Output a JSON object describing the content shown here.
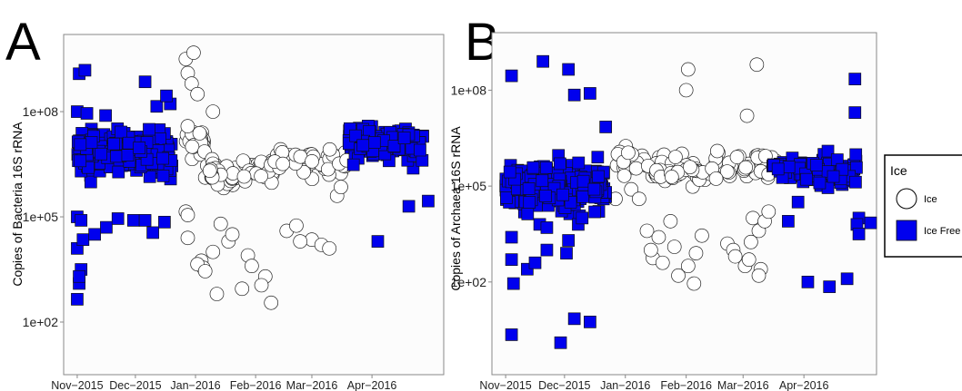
{
  "colors": {
    "ice_fill": "#ffffff",
    "ice_free_fill": "#0000ee",
    "panel_bg": "#fcfcfc",
    "axis": "#888888"
  },
  "legend": {
    "title": "Ice",
    "items": [
      {
        "label": "Ice",
        "shape": "circle",
        "color": "#ffffff"
      },
      {
        "label": "Ice  Free",
        "shape": "square",
        "color": "#0000ee"
      }
    ]
  },
  "chart_data": [
    {
      "type": "scatter",
      "panel_label": "A",
      "ylabel": "Copies of Bacteria 16S rRNA",
      "xlabel": "",
      "yscale": "log10",
      "ylim_log10": [
        0.5,
        10.2
      ],
      "xlim": [
        "2015-10-25",
        "2016-05-08"
      ],
      "x_ticks": [
        "Nov−2015",
        "Dec−2015",
        "Jan−2016",
        "Feb−2016",
        "Mar−2016",
        "Apr−2016"
      ],
      "y_ticks": [
        "1e+02",
        "1e+05",
        "1e+08"
      ],
      "series": [
        {
          "name": "Ice Free",
          "marker": "square",
          "clusters": [
            {
              "x_from": "2015-11-01",
              "x_to": "2015-12-20",
              "log10_center": 6.8,
              "log10_spread": 0.55,
              "n": 230
            },
            {
              "x_from": "2016-03-20",
              "x_to": "2016-04-28",
              "log10_center": 7.1,
              "log10_spread": 0.4,
              "n": 130
            }
          ],
          "points": [
            [
              "2015-11-02",
              9.08
            ],
            [
              "2015-11-05",
              9.18
            ],
            [
              "2015-12-06",
              8.85
            ],
            [
              "2015-12-12",
              8.15
            ],
            [
              "2015-12-19",
              8.22
            ],
            [
              "2015-12-17",
              8.45
            ],
            [
              "2015-11-01",
              8.0
            ],
            [
              "2015-11-06",
              7.95
            ],
            [
              "2015-11-01",
              5.0
            ],
            [
              "2015-11-03",
              4.9
            ],
            [
              "2015-11-01",
              4.1
            ],
            [
              "2015-11-04",
              4.35
            ],
            [
              "2015-11-02",
              3.1
            ],
            [
              "2015-11-01",
              2.65
            ],
            [
              "2015-11-03",
              3.5
            ],
            [
              "2015-11-02",
              3.3
            ],
            [
              "2015-11-10",
              4.5
            ],
            [
              "2015-11-16",
              4.7
            ],
            [
              "2015-11-22",
              4.95
            ],
            [
              "2015-11-30",
              4.9
            ],
            [
              "2015-12-10",
              4.55
            ],
            [
              "2015-12-16",
              4.85
            ],
            [
              "2015-12-06",
              4.9
            ],
            [
              "2016-04-04",
              4.3
            ],
            [
              "2016-04-20",
              5.3
            ],
            [
              "2016-04-30",
              5.45
            ]
          ]
        },
        {
          "name": "Ice",
          "marker": "circle",
          "clusters": [
            {
              "x_from": "2015-12-27",
              "x_to": "2016-01-06",
              "log10_center": 7.15,
              "log10_spread": 0.3,
              "n": 40
            },
            {
              "x_from": "2016-01-06",
              "x_to": "2016-02-10",
              "log10_center": 6.3,
              "log10_spread": 0.35,
              "n": 60
            },
            {
              "x_from": "2016-02-10",
              "x_to": "2016-03-20",
              "log10_center": 6.6,
              "log10_spread": 0.3,
              "n": 60
            }
          ],
          "points": [
            [
              "2015-12-27",
              9.5
            ],
            [
              "2015-12-31",
              9.68
            ],
            [
              "2015-12-28",
              9.1
            ],
            [
              "2015-12-30",
              8.8
            ],
            [
              "2016-01-10",
              8.0
            ],
            [
              "2016-01-02",
              8.5
            ],
            [
              "2015-12-27",
              5.15
            ],
            [
              "2015-12-28",
              5.05
            ],
            [
              "2015-12-28",
              4.4
            ],
            [
              "2016-01-04",
              3.75
            ],
            [
              "2016-01-05",
              3.55
            ],
            [
              "2016-01-02",
              3.65
            ],
            [
              "2016-01-06",
              3.45
            ],
            [
              "2016-01-10",
              4.0
            ],
            [
              "2016-01-14",
              4.8
            ],
            [
              "2016-01-18",
              4.3
            ],
            [
              "2016-01-20",
              4.5
            ],
            [
              "2016-01-12",
              2.8
            ],
            [
              "2016-01-25",
              2.95
            ],
            [
              "2016-01-28",
              3.9
            ],
            [
              "2016-01-30",
              3.6
            ],
            [
              "2016-02-06",
              3.3
            ],
            [
              "2016-02-04",
              3.05
            ],
            [
              "2016-02-09",
              2.55
            ],
            [
              "2016-02-17",
              4.6
            ],
            [
              "2016-02-22",
              4.75
            ],
            [
              "2016-03-01",
              4.35
            ],
            [
              "2016-03-06",
              4.2
            ],
            [
              "2016-03-10",
              4.1
            ],
            [
              "2016-02-24",
              4.3
            ],
            [
              "2016-03-14",
              5.6
            ],
            [
              "2016-03-16",
              5.85
            ]
          ]
        }
      ]
    },
    {
      "type": "scatter",
      "panel_label": "B",
      "ylabel": "Copies of Archaea 16S rRNA",
      "xlabel": "",
      "yscale": "log10",
      "ylim_log10": [
        -0.9,
        9.8
      ],
      "xlim": [
        "2015-10-25",
        "2016-05-08"
      ],
      "x_ticks": [
        "Nov−2015",
        "Dec−2015",
        "Jan−2016",
        "Feb−2016",
        "Mar−2016",
        "Apr−2016"
      ],
      "y_ticks": [
        "1e+02",
        "1e+05",
        "1e+08"
      ],
      "series": [
        {
          "name": "Ice Free",
          "marker": "square",
          "clusters": [
            {
              "x_from": "2015-11-01",
              "x_to": "2015-12-22",
              "log10_center": 5.0,
              "log10_spread": 0.55,
              "n": 260
            },
            {
              "x_from": "2016-03-16",
              "x_to": "2016-04-28",
              "log10_center": 5.5,
              "log10_spread": 0.4,
              "n": 90
            }
          ],
          "points": [
            [
              "2015-11-04",
              8.45
            ],
            [
              "2015-11-20",
              8.9
            ],
            [
              "2015-12-03",
              8.65
            ],
            [
              "2015-12-06",
              7.85
            ],
            [
              "2015-12-14",
              7.9
            ],
            [
              "2015-12-22",
              6.85
            ],
            [
              "2015-11-04",
              3.4
            ],
            [
              "2015-11-04",
              2.7
            ],
            [
              "2015-11-05",
              1.95
            ],
            [
              "2015-11-04",
              0.35
            ],
            [
              "2015-11-12",
              2.4
            ],
            [
              "2015-11-16",
              2.6
            ],
            [
              "2015-11-22",
              3.7
            ],
            [
              "2015-11-22",
              3.0
            ],
            [
              "2015-12-02",
              2.9
            ],
            [
              "2015-12-03",
              3.3
            ],
            [
              "2015-12-08",
              3.8
            ],
            [
              "2015-12-10",
              4.0
            ],
            [
              "2015-12-06",
              0.85
            ],
            [
              "2015-12-14",
              0.75
            ],
            [
              "2015-11-29",
              0.1
            ],
            [
              "2016-04-03",
              2.0
            ],
            [
              "2016-04-14",
              1.85
            ],
            [
              "2016-04-23",
              2.1
            ],
            [
              "2016-04-29",
              4.0
            ],
            [
              "2016-04-28",
              3.8
            ],
            [
              "2016-04-29",
              3.5
            ],
            [
              "2016-05-05",
              3.85
            ],
            [
              "2016-04-27",
              8.35
            ],
            [
              "2016-04-27",
              7.3
            ],
            [
              "2016-03-24",
              3.9
            ],
            [
              "2016-03-29",
              4.5
            ],
            [
              "2016-04-09",
              5.1
            ],
            [
              "2016-04-16",
              5.3
            ]
          ]
        },
        {
          "name": "Ice",
          "marker": "circle",
          "clusters": [
            {
              "x_from": "2015-12-27",
              "x_to": "2016-01-12",
              "log10_center": 5.8,
              "log10_spread": 0.3,
              "n": 35
            },
            {
              "x_from": "2016-01-12",
              "x_to": "2016-02-14",
              "log10_center": 5.5,
              "log10_spread": 0.4,
              "n": 55
            },
            {
              "x_from": "2016-02-14",
              "x_to": "2016-03-18",
              "log10_center": 5.6,
              "log10_spread": 0.35,
              "n": 50
            }
          ],
          "points": [
            [
              "2016-02-02",
              8.65
            ],
            [
              "2016-02-01",
              8.0
            ],
            [
              "2016-03-08",
              8.8
            ],
            [
              "2016-03-03",
              7.2
            ],
            [
              "2015-12-27",
              4.6
            ],
            [
              "2016-01-04",
              4.9
            ],
            [
              "2016-01-08",
              4.6
            ],
            [
              "2016-01-12",
              3.6
            ],
            [
              "2016-01-15",
              2.75
            ],
            [
              "2016-01-14",
              3.0
            ],
            [
              "2016-01-18",
              3.4
            ],
            [
              "2016-01-20",
              2.6
            ],
            [
              "2016-01-24",
              3.9
            ],
            [
              "2016-01-26",
              3.1
            ],
            [
              "2016-01-28",
              2.2
            ],
            [
              "2016-02-02",
              2.5
            ],
            [
              "2016-02-05",
              1.95
            ],
            [
              "2016-02-06",
              2.9
            ],
            [
              "2016-02-09",
              3.45
            ],
            [
              "2016-02-22",
              3.2
            ],
            [
              "2016-02-25",
              3.0
            ],
            [
              "2016-02-26",
              2.8
            ],
            [
              "2016-03-02",
              2.5
            ],
            [
              "2016-03-04",
              2.7
            ],
            [
              "2016-03-05",
              3.25
            ],
            [
              "2016-03-09",
              3.6
            ],
            [
              "2016-03-10",
              2.4
            ],
            [
              "2016-03-09",
              2.2
            ],
            [
              "2016-03-06",
              4.0
            ],
            [
              "2016-03-12",
              3.9
            ],
            [
              "2016-03-14",
              4.2
            ]
          ]
        }
      ]
    }
  ]
}
